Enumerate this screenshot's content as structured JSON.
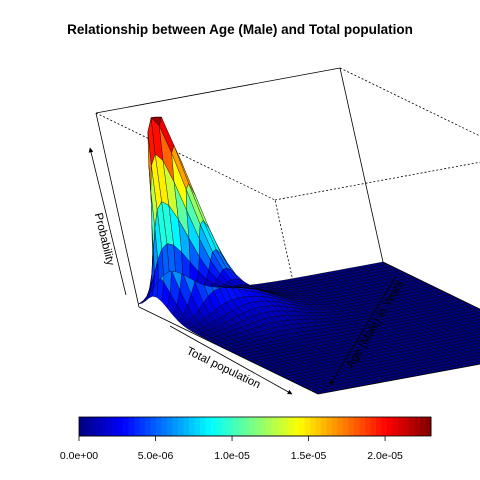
{
  "chart_data": {
    "type": "surface3d",
    "title": "Relationship between Age (Male) and Total population",
    "xlabel": "Total population",
    "ylabel": "Age (Male) in Years",
    "zlabel": "Probability",
    "peak_density": 2.3e-05,
    "peak_location_fraction": {
      "total_population": 0.12,
      "age": 0.15
    },
    "colorbar": {
      "range": [
        0,
        2.3e-05
      ],
      "ticks": [
        0,
        5e-06,
        1e-05,
        1.5e-05,
        2e-05
      ],
      "tick_labels": [
        "0.0e+00",
        "5.0e-06",
        "1.0e-05",
        "1.5e-05",
        "2.0e-05"
      ],
      "colormap": "jet"
    },
    "grid_resolution": 40
  }
}
